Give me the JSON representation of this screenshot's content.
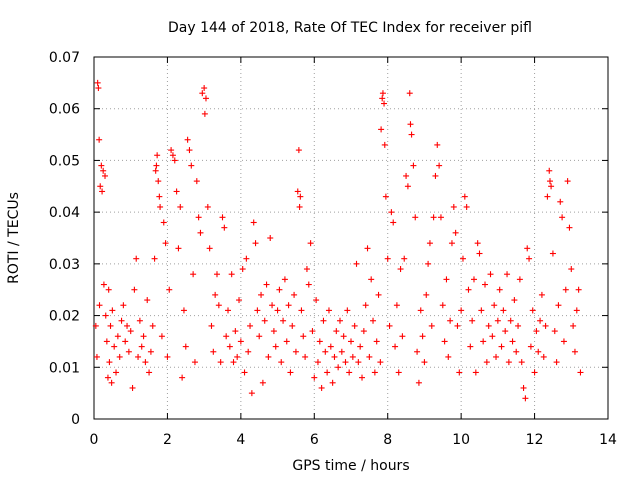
{
  "chart_data": {
    "type": "scatter",
    "title": "Day 144 of 2018, Rate Of TEC Index for receiver pifl",
    "xlabel": "GPS time / hours",
    "ylabel": "ROTI / TECUs",
    "xlim": [
      0,
      14
    ],
    "ylim": [
      0,
      0.07
    ],
    "x_ticks": [
      0,
      2,
      4,
      6,
      8,
      10,
      12,
      14
    ],
    "x_tick_labels": [
      "0",
      "2",
      "4",
      "6",
      "8",
      "10",
      "12",
      "14"
    ],
    "y_ticks": [
      0,
      0.01,
      0.02,
      0.03,
      0.04,
      0.05,
      0.06,
      0.07
    ],
    "y_tick_labels": [
      "0",
      "0.01",
      "0.02",
      "0.03",
      "0.04",
      "0.05",
      "0.06",
      "0.07"
    ],
    "grid": true,
    "marker": "+",
    "color": "#ff0000",
    "series": [
      {
        "name": "ROTI",
        "points": [
          [
            0.05,
            0.018
          ],
          [
            0.08,
            0.012
          ],
          [
            0.1,
            0.065
          ],
          [
            0.12,
            0.064
          ],
          [
            0.14,
            0.054
          ],
          [
            0.15,
            0.022
          ],
          [
            0.17,
            0.045
          ],
          [
            0.2,
            0.049
          ],
          [
            0.22,
            0.044
          ],
          [
            0.25,
            0.048
          ],
          [
            0.27,
            0.026
          ],
          [
            0.3,
            0.047
          ],
          [
            0.32,
            0.02
          ],
          [
            0.35,
            0.015
          ],
          [
            0.38,
            0.008
          ],
          [
            0.4,
            0.025
          ],
          [
            0.42,
            0.011
          ],
          [
            0.45,
            0.018
          ],
          [
            0.48,
            0.007
          ],
          [
            0.5,
            0.021
          ],
          [
            0.55,
            0.014
          ],
          [
            0.6,
            0.009
          ],
          [
            0.65,
            0.016
          ],
          [
            0.7,
            0.012
          ],
          [
            0.75,
            0.019
          ],
          [
            0.8,
            0.022
          ],
          [
            0.85,
            0.015
          ],
          [
            0.9,
            0.018
          ],
          [
            0.95,
            0.013
          ],
          [
            1.0,
            0.017
          ],
          [
            1.05,
            0.006
          ],
          [
            1.1,
            0.025
          ],
          [
            1.15,
            0.031
          ],
          [
            1.2,
            0.012
          ],
          [
            1.25,
            0.019
          ],
          [
            1.3,
            0.014
          ],
          [
            1.35,
            0.016
          ],
          [
            1.4,
            0.011
          ],
          [
            1.45,
            0.023
          ],
          [
            1.5,
            0.009
          ],
          [
            1.55,
            0.013
          ],
          [
            1.6,
            0.018
          ],
          [
            1.65,
            0.031
          ],
          [
            1.68,
            0.048
          ],
          [
            1.7,
            0.049
          ],
          [
            1.72,
            0.051
          ],
          [
            1.75,
            0.046
          ],
          [
            1.78,
            0.043
          ],
          [
            1.8,
            0.041
          ],
          [
            1.85,
            0.016
          ],
          [
            1.9,
            0.038
          ],
          [
            1.95,
            0.034
          ],
          [
            2.0,
            0.012
          ],
          [
            2.05,
            0.025
          ],
          [
            2.1,
            0.052
          ],
          [
            2.15,
            0.051
          ],
          [
            2.2,
            0.05
          ],
          [
            2.25,
            0.044
          ],
          [
            2.3,
            0.033
          ],
          [
            2.35,
            0.041
          ],
          [
            2.4,
            0.008
          ],
          [
            2.45,
            0.021
          ],
          [
            2.5,
            0.014
          ],
          [
            2.55,
            0.054
          ],
          [
            2.6,
            0.052
          ],
          [
            2.65,
            0.049
          ],
          [
            2.7,
            0.028
          ],
          [
            2.75,
            0.011
          ],
          [
            2.8,
            0.046
          ],
          [
            2.85,
            0.039
          ],
          [
            2.9,
            0.036
          ],
          [
            2.95,
            0.063
          ],
          [
            3.0,
            0.064
          ],
          [
            3.02,
            0.059
          ],
          [
            3.05,
            0.062
          ],
          [
            3.1,
            0.041
          ],
          [
            3.15,
            0.033
          ],
          [
            3.2,
            0.018
          ],
          [
            3.25,
            0.013
          ],
          [
            3.3,
            0.024
          ],
          [
            3.35,
            0.028
          ],
          [
            3.4,
            0.022
          ],
          [
            3.45,
            0.011
          ],
          [
            3.5,
            0.039
          ],
          [
            3.55,
            0.037
          ],
          [
            3.6,
            0.016
          ],
          [
            3.65,
            0.021
          ],
          [
            3.7,
            0.014
          ],
          [
            3.75,
            0.028
          ],
          [
            3.8,
            0.011
          ],
          [
            3.85,
            0.017
          ],
          [
            3.9,
            0.012
          ],
          [
            3.95,
            0.023
          ],
          [
            4.0,
            0.015
          ],
          [
            4.05,
            0.029
          ],
          [
            4.1,
            0.009
          ],
          [
            4.15,
            0.031
          ],
          [
            4.2,
            0.013
          ],
          [
            4.25,
            0.018
          ],
          [
            4.3,
            0.005
          ],
          [
            4.35,
            0.038
          ],
          [
            4.4,
            0.034
          ],
          [
            4.45,
            0.021
          ],
          [
            4.5,
            0.016
          ],
          [
            4.55,
            0.024
          ],
          [
            4.6,
            0.007
          ],
          [
            4.65,
            0.019
          ],
          [
            4.7,
            0.026
          ],
          [
            4.75,
            0.012
          ],
          [
            4.8,
            0.035
          ],
          [
            4.85,
            0.022
          ],
          [
            4.9,
            0.017
          ],
          [
            4.95,
            0.014
          ],
          [
            5.0,
            0.021
          ],
          [
            5.05,
            0.025
          ],
          [
            5.1,
            0.011
          ],
          [
            5.15,
            0.019
          ],
          [
            5.2,
            0.027
          ],
          [
            5.25,
            0.015
          ],
          [
            5.3,
            0.022
          ],
          [
            5.35,
            0.009
          ],
          [
            5.4,
            0.018
          ],
          [
            5.45,
            0.024
          ],
          [
            5.5,
            0.013
          ],
          [
            5.55,
            0.044
          ],
          [
            5.58,
            0.052
          ],
          [
            5.6,
            0.041
          ],
          [
            5.62,
            0.043
          ],
          [
            5.65,
            0.021
          ],
          [
            5.7,
            0.016
          ],
          [
            5.75,
            0.012
          ],
          [
            5.8,
            0.029
          ],
          [
            5.85,
            0.026
          ],
          [
            5.9,
            0.034
          ],
          [
            5.95,
            0.017
          ],
          [
            6.0,
            0.008
          ],
          [
            6.05,
            0.023
          ],
          [
            6.1,
            0.011
          ],
          [
            6.15,
            0.015
          ],
          [
            6.2,
            0.006
          ],
          [
            6.25,
            0.019
          ],
          [
            6.3,
            0.013
          ],
          [
            6.35,
            0.009
          ],
          [
            6.4,
            0.021
          ],
          [
            6.45,
            0.014
          ],
          [
            6.5,
            0.007
          ],
          [
            6.55,
            0.012
          ],
          [
            6.6,
            0.017
          ],
          [
            6.65,
            0.01
          ],
          [
            6.7,
            0.019
          ],
          [
            6.75,
            0.013
          ],
          [
            6.8,
            0.016
          ],
          [
            6.85,
            0.011
          ],
          [
            6.9,
            0.021
          ],
          [
            6.95,
            0.009
          ],
          [
            7.0,
            0.015
          ],
          [
            7.05,
            0.012
          ],
          [
            7.1,
            0.018
          ],
          [
            7.15,
            0.03
          ],
          [
            7.2,
            0.011
          ],
          [
            7.25,
            0.014
          ],
          [
            7.3,
            0.008
          ],
          [
            7.35,
            0.017
          ],
          [
            7.4,
            0.022
          ],
          [
            7.45,
            0.033
          ],
          [
            7.5,
            0.012
          ],
          [
            7.55,
            0.027
          ],
          [
            7.6,
            0.019
          ],
          [
            7.65,
            0.009
          ],
          [
            7.7,
            0.015
          ],
          [
            7.75,
            0.024
          ],
          [
            7.8,
            0.011
          ],
          [
            7.82,
            0.056
          ],
          [
            7.85,
            0.062
          ],
          [
            7.87,
            0.063
          ],
          [
            7.9,
            0.061
          ],
          [
            7.92,
            0.053
          ],
          [
            7.95,
            0.043
          ],
          [
            8.0,
            0.031
          ],
          [
            8.05,
            0.018
          ],
          [
            8.1,
            0.04
          ],
          [
            8.15,
            0.038
          ],
          [
            8.2,
            0.014
          ],
          [
            8.25,
            0.022
          ],
          [
            8.3,
            0.009
          ],
          [
            8.35,
            0.029
          ],
          [
            8.4,
            0.016
          ],
          [
            8.45,
            0.031
          ],
          [
            8.5,
            0.047
          ],
          [
            8.55,
            0.045
          ],
          [
            8.6,
            0.063
          ],
          [
            8.62,
            0.057
          ],
          [
            8.65,
            0.055
          ],
          [
            8.7,
            0.049
          ],
          [
            8.75,
            0.039
          ],
          [
            8.8,
            0.013
          ],
          [
            8.85,
            0.007
          ],
          [
            8.9,
            0.021
          ],
          [
            8.95,
            0.016
          ],
          [
            9.0,
            0.011
          ],
          [
            9.05,
            0.024
          ],
          [
            9.1,
            0.03
          ],
          [
            9.15,
            0.034
          ],
          [
            9.2,
            0.018
          ],
          [
            9.25,
            0.039
          ],
          [
            9.3,
            0.047
          ],
          [
            9.35,
            0.053
          ],
          [
            9.4,
            0.049
          ],
          [
            9.45,
            0.039
          ],
          [
            9.5,
            0.022
          ],
          [
            9.55,
            0.015
          ],
          [
            9.6,
            0.027
          ],
          [
            9.65,
            0.012
          ],
          [
            9.7,
            0.019
          ],
          [
            9.75,
            0.034
          ],
          [
            9.8,
            0.041
          ],
          [
            9.85,
            0.036
          ],
          [
            9.9,
            0.018
          ],
          [
            9.95,
            0.009
          ],
          [
            10.0,
            0.021
          ],
          [
            10.05,
            0.031
          ],
          [
            10.1,
            0.043
          ],
          [
            10.15,
            0.041
          ],
          [
            10.2,
            0.025
          ],
          [
            10.25,
            0.014
          ],
          [
            10.3,
            0.019
          ],
          [
            10.35,
            0.027
          ],
          [
            10.4,
            0.009
          ],
          [
            10.45,
            0.034
          ],
          [
            10.5,
            0.032
          ],
          [
            10.55,
            0.021
          ],
          [
            10.6,
            0.015
          ],
          [
            10.65,
            0.026
          ],
          [
            10.7,
            0.011
          ],
          [
            10.75,
            0.018
          ],
          [
            10.8,
            0.028
          ],
          [
            10.85,
            0.016
          ],
          [
            10.9,
            0.022
          ],
          [
            10.95,
            0.012
          ],
          [
            11.0,
            0.019
          ],
          [
            11.05,
            0.025
          ],
          [
            11.1,
            0.014
          ],
          [
            11.15,
            0.021
          ],
          [
            11.2,
            0.017
          ],
          [
            11.25,
            0.028
          ],
          [
            11.3,
            0.011
          ],
          [
            11.35,
            0.019
          ],
          [
            11.4,
            0.015
          ],
          [
            11.45,
            0.023
          ],
          [
            11.5,
            0.013
          ],
          [
            11.55,
            0.018
          ],
          [
            11.6,
            0.027
          ],
          [
            11.65,
            0.011
          ],
          [
            11.7,
            0.006
          ],
          [
            11.75,
            0.004
          ],
          [
            11.8,
            0.033
          ],
          [
            11.85,
            0.031
          ],
          [
            11.9,
            0.014
          ],
          [
            11.95,
            0.021
          ],
          [
            12.0,
            0.009
          ],
          [
            12.05,
            0.017
          ],
          [
            12.1,
            0.013
          ],
          [
            12.15,
            0.019
          ],
          [
            12.2,
            0.024
          ],
          [
            12.25,
            0.012
          ],
          [
            12.3,
            0.018
          ],
          [
            12.35,
            0.043
          ],
          [
            12.4,
            0.048
          ],
          [
            12.42,
            0.046
          ],
          [
            12.45,
            0.045
          ],
          [
            12.5,
            0.032
          ],
          [
            12.55,
            0.017
          ],
          [
            12.6,
            0.011
          ],
          [
            12.65,
            0.022
          ],
          [
            12.7,
            0.042
          ],
          [
            12.75,
            0.039
          ],
          [
            12.8,
            0.015
          ],
          [
            12.85,
            0.025
          ],
          [
            12.9,
            0.046
          ],
          [
            12.95,
            0.037
          ],
          [
            13.0,
            0.029
          ],
          [
            13.05,
            0.018
          ],
          [
            13.1,
            0.013
          ],
          [
            13.15,
            0.021
          ],
          [
            13.2,
            0.025
          ],
          [
            13.25,
            0.009
          ]
        ]
      }
    ]
  }
}
